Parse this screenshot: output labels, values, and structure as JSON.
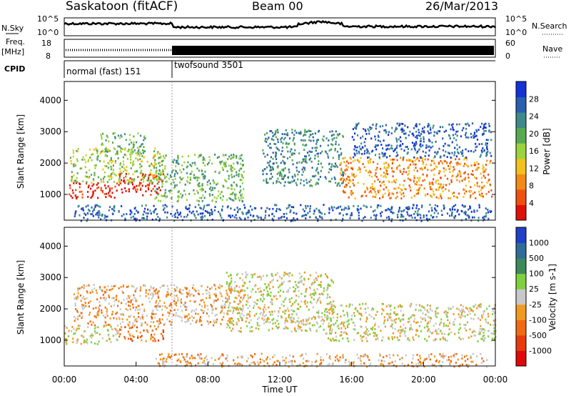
{
  "header": {
    "station": "Saskatoon (fitACF)",
    "beam": "Beam 00",
    "date": "26/Mar/2013"
  },
  "top_panels": {
    "nsky_label": "N.Sky",
    "nsky_ticks": [
      "10^5",
      "10^0"
    ],
    "nsearch_label": "N.Search",
    "nsearch_ticks": [
      "10^5",
      "10^0"
    ],
    "freq_label": "Freq.",
    "freq_unit": "[MHz]",
    "freq_ticks": [
      "18",
      "8"
    ],
    "nave_label": "Nave",
    "nave_ticks": [
      "60",
      "0"
    ],
    "cpid_label": "CPID",
    "cpid_segments": [
      {
        "start_hour": 0,
        "end_hour": 6,
        "label": "normal (fast) 151"
      },
      {
        "start_hour": 6,
        "end_hour": 24,
        "label": "twofsound 3501"
      }
    ]
  },
  "chart_data": [
    {
      "type": "heatmap",
      "panel": "power",
      "ylabel": "Slant Range [km]",
      "yticks": [
        1000,
        2000,
        3000,
        4000
      ],
      "ylim": [
        180,
        4600
      ],
      "xlim": [
        0,
        24
      ],
      "colorbar": {
        "label": "Power [dB]",
        "ticks": [
          "28",
          "24",
          "20",
          "16",
          "12",
          "8",
          "4"
        ],
        "colors": [
          "#1432d6",
          "#2a5fb0",
          "#3e8a8a",
          "#58aa52",
          "#9cd33c",
          "#f2c21c",
          "#f28a18",
          "#ee5010",
          "#e01008"
        ]
      },
      "scatter_bands": [
        {
          "h0": 0.2,
          "h1": 3.0,
          "r0": 900,
          "r1": 1400,
          "level": 8
        },
        {
          "h0": 3.0,
          "h1": 5.5,
          "r0": 1000,
          "r1": 1700,
          "level": 8
        },
        {
          "h0": 0.3,
          "h1": 5.5,
          "r0": 1400,
          "r1": 2500,
          "level": 4
        },
        {
          "h0": 2.0,
          "h1": 4.5,
          "r0": 2300,
          "r1": 3000,
          "level": 3
        },
        {
          "h0": 5.0,
          "h1": 10.0,
          "r0": 800,
          "r1": 2300,
          "level": 3
        },
        {
          "h0": 11.0,
          "h1": 15.5,
          "r0": 1300,
          "r1": 3100,
          "level": 2
        },
        {
          "h0": 15.3,
          "h1": 23.8,
          "r0": 900,
          "r1": 2200,
          "level": 6
        },
        {
          "h0": 16.0,
          "h1": 23.8,
          "r0": 2200,
          "r1": 3300,
          "level": 1
        },
        {
          "h0": 0.5,
          "h1": 23.8,
          "r0": 180,
          "r1": 700,
          "level": 1
        }
      ]
    },
    {
      "type": "heatmap",
      "panel": "velocity",
      "ylabel": "Slant Range [km]",
      "yticks": [
        1000,
        2000,
        3000,
        4000
      ],
      "ylim": [
        180,
        4600
      ],
      "xlim": [
        0,
        24
      ],
      "xticks": [
        "00:00",
        "04:00",
        "08:00",
        "12:00",
        "16:00",
        "20:00",
        "00:00"
      ],
      "xlabel": "Time UT",
      "colorbar": {
        "label": "Velocity [m s-1]",
        "ticks": [
          "1000",
          "500",
          "100",
          "25",
          "-25",
          "-100",
          "-500",
          "-1000"
        ],
        "colors": [
          "#2040c8",
          "#2f6c98",
          "#3c8a5a",
          "#7ed03e",
          "#c8c8c8",
          "#f09a22",
          "#f06a12",
          "#e83a0c",
          "#e00808"
        ]
      },
      "scatter_bands": [
        {
          "h0": 0.0,
          "h1": 3.0,
          "r0": 900,
          "r1": 1500,
          "level": 4
        },
        {
          "h0": 3.0,
          "h1": 5.5,
          "r0": 1000,
          "r1": 1500,
          "level": 6
        },
        {
          "h0": 0.5,
          "h1": 10.0,
          "r0": 1500,
          "r1": 2800,
          "level": 5
        },
        {
          "h0": 9.0,
          "h1": 15.0,
          "r0": 1300,
          "r1": 3200,
          "level": 4
        },
        {
          "h0": 14.5,
          "h1": 24.0,
          "r0": 1000,
          "r1": 2200,
          "level": 4
        },
        {
          "h0": 5.0,
          "h1": 23.5,
          "r0": 180,
          "r1": 600,
          "level": 5
        }
      ]
    }
  ]
}
